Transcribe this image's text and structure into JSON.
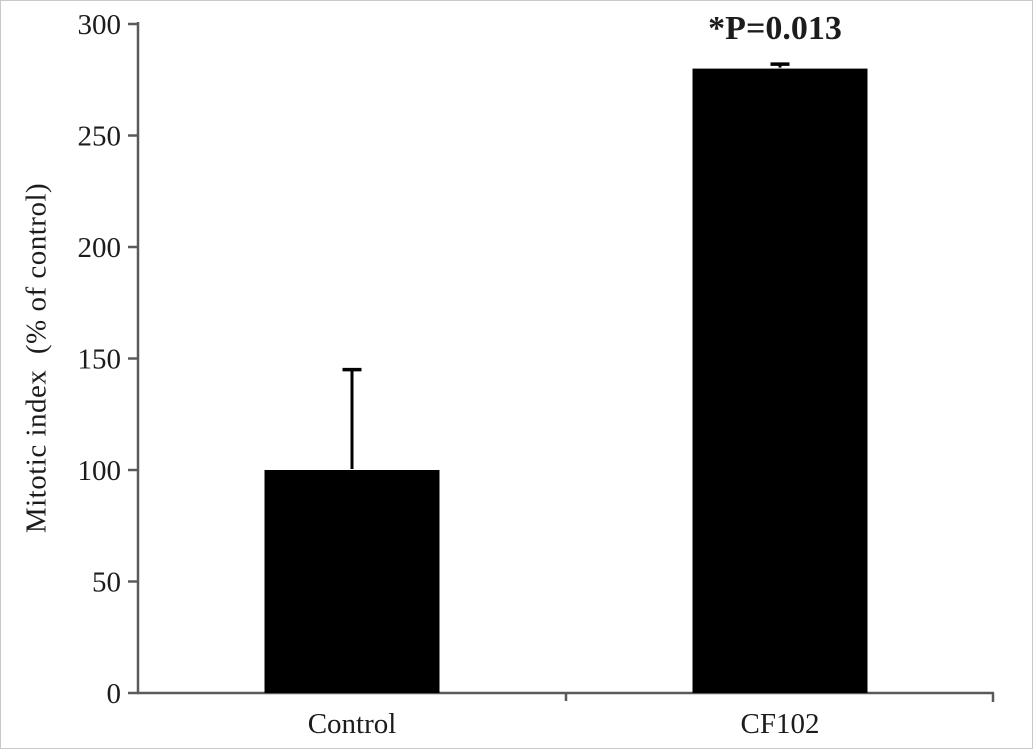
{
  "figure": {
    "background": "#ffffff",
    "border_color": "#c9c9c9"
  },
  "chart_data": {
    "type": "bar",
    "title": "",
    "xlabel": "",
    "ylabel": "Mitotic index  (% of control)",
    "categories": [
      "Control",
      "CF102"
    ],
    "values": [
      100,
      280
    ],
    "error_plus": [
      45,
      2
    ],
    "ylim": [
      0,
      300
    ],
    "ytick_values": [
      0,
      50,
      100,
      150,
      200,
      250,
      300
    ],
    "ytick_labels": [
      "0",
      "50",
      "100",
      "150",
      "200",
      "250",
      "300"
    ],
    "annotation": {
      "text": "*P=0.013",
      "category_index": 1
    },
    "grid": false,
    "legend": null,
    "bar_color": "#000000",
    "error_bar_color": "#000000",
    "axis_color": "#5a5a5a",
    "text_color": "#1c1c1c"
  }
}
